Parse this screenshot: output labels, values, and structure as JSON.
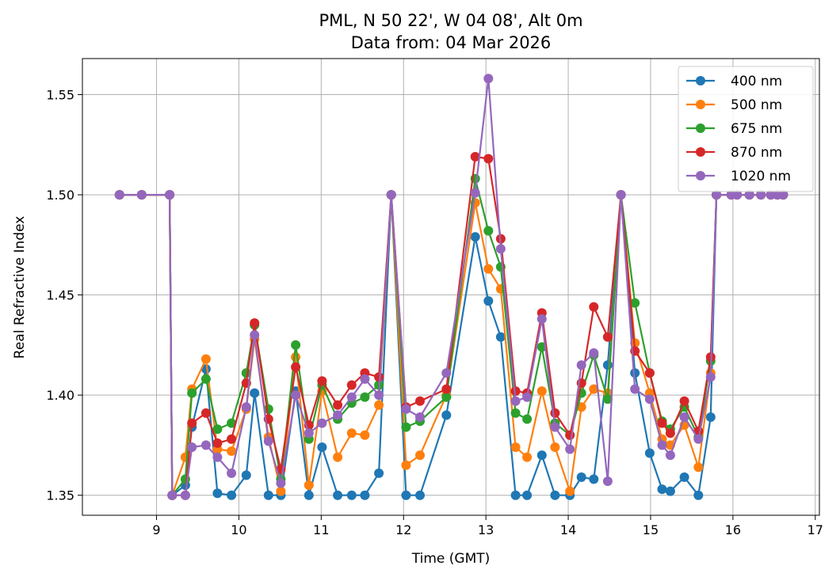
{
  "chart_data": {
    "type": "line",
    "title": "PML, N 50 22', W 04 08', Alt 0m",
    "subtitle": "Data from: 04 Mar 2026",
    "xlabel": "Time (GMT)",
    "ylabel": "Real Refractive Index",
    "xlim": [
      8.1,
      17.05
    ],
    "ylim": [
      1.34,
      1.568
    ],
    "xticks": [
      9,
      10,
      11,
      12,
      13,
      14,
      15,
      16,
      17
    ],
    "xtick_labels": [
      "9",
      "10",
      "11",
      "12",
      "13",
      "14",
      "15",
      "16",
      "17"
    ],
    "yticks": [
      1.35,
      1.4,
      1.45,
      1.5,
      1.55
    ],
    "ytick_labels": [
      "1.35",
      "1.40",
      "1.45",
      "1.50",
      "1.55"
    ],
    "grid": true,
    "legend_position": "top-right",
    "x": [
      8.55,
      8.82,
      9.16,
      9.19,
      9.35,
      9.43,
      9.6,
      9.74,
      9.91,
      10.09,
      10.19,
      10.36,
      10.51,
      10.69,
      10.85,
      11.01,
      11.2,
      11.37,
      11.53,
      11.7,
      11.85,
      12.03,
      12.2,
      12.52,
      12.87,
      13.03,
      13.18,
      13.36,
      13.5,
      13.68,
      13.84,
      14.02,
      14.16,
      14.31,
      14.48,
      14.64,
      14.81,
      14.99,
      15.14,
      15.24,
      15.41,
      15.58,
      15.73,
      15.8,
      15.98,
      16.05,
      16.2,
      16.34,
      16.46,
      16.54,
      16.61
    ],
    "series": [
      {
        "name": "400 nm",
        "color": "#1f77b4",
        "values": [
          1.5,
          1.5,
          1.5,
          1.35,
          1.355,
          1.384,
          1.413,
          1.351,
          1.35,
          1.36,
          1.401,
          1.35,
          1.35,
          1.402,
          1.35,
          1.374,
          1.35,
          1.35,
          1.35,
          1.361,
          1.5,
          1.35,
          1.35,
          1.39,
          1.479,
          1.447,
          1.429,
          1.35,
          1.35,
          1.37,
          1.35,
          1.35,
          1.359,
          1.358,
          1.415,
          1.5,
          1.411,
          1.371,
          1.353,
          1.352,
          1.359,
          1.35,
          1.389,
          1.5,
          1.5,
          1.5,
          1.5,
          1.5,
          1.5,
          1.5,
          1.5
        ]
      },
      {
        "name": "500 nm",
        "color": "#ff7f0e",
        "values": [
          1.5,
          1.5,
          1.5,
          1.35,
          1.369,
          1.403,
          1.418,
          1.373,
          1.372,
          1.393,
          1.428,
          1.379,
          1.352,
          1.419,
          1.355,
          1.402,
          1.369,
          1.381,
          1.38,
          1.395,
          1.5,
          1.365,
          1.37,
          1.4,
          1.496,
          1.463,
          1.453,
          1.374,
          1.369,
          1.402,
          1.374,
          1.352,
          1.394,
          1.403,
          1.401,
          1.5,
          1.426,
          1.401,
          1.378,
          1.375,
          1.385,
          1.364,
          1.411,
          1.5,
          1.5,
          1.5,
          1.5,
          1.5,
          1.5,
          1.5,
          1.5
        ]
      },
      {
        "name": "675 nm",
        "color": "#2ca02c",
        "values": [
          1.5,
          1.5,
          1.5,
          1.35,
          1.358,
          1.401,
          1.408,
          1.383,
          1.386,
          1.411,
          1.435,
          1.393,
          1.358,
          1.425,
          1.378,
          1.405,
          1.388,
          1.396,
          1.399,
          1.405,
          1.5,
          1.384,
          1.387,
          1.399,
          1.508,
          1.482,
          1.464,
          1.391,
          1.388,
          1.424,
          1.386,
          1.38,
          1.401,
          1.42,
          1.398,
          1.5,
          1.446,
          1.411,
          1.387,
          1.383,
          1.394,
          1.379,
          1.417,
          1.5,
          1.5,
          1.5,
          1.5,
          1.5,
          1.5,
          1.5,
          1.5
        ]
      },
      {
        "name": "870 nm",
        "color": "#d62728",
        "values": [
          1.5,
          1.5,
          1.5,
          1.35,
          1.35,
          1.386,
          1.391,
          1.376,
          1.378,
          1.406,
          1.436,
          1.388,
          1.363,
          1.414,
          1.385,
          1.407,
          1.395,
          1.405,
          1.411,
          1.409,
          1.5,
          1.394,
          1.397,
          1.403,
          1.519,
          1.518,
          1.478,
          1.402,
          1.401,
          1.441,
          1.391,
          1.38,
          1.406,
          1.444,
          1.429,
          1.5,
          1.422,
          1.411,
          1.386,
          1.381,
          1.397,
          1.382,
          1.419,
          1.5,
          1.5,
          1.5,
          1.5,
          1.5,
          1.5,
          1.5,
          1.5
        ]
      },
      {
        "name": "1020 nm",
        "color": "#9467bd",
        "values": [
          1.5,
          1.5,
          1.5,
          1.35,
          1.35,
          1.374,
          1.375,
          1.369,
          1.361,
          1.394,
          1.43,
          1.377,
          1.356,
          1.4,
          1.381,
          1.386,
          1.39,
          1.399,
          1.408,
          1.4,
          1.5,
          1.393,
          1.389,
          1.411,
          1.501,
          1.558,
          1.473,
          1.397,
          1.399,
          1.438,
          1.384,
          1.373,
          1.415,
          1.421,
          1.357,
          1.5,
          1.403,
          1.398,
          1.375,
          1.37,
          1.389,
          1.378,
          1.409,
          1.5,
          1.5,
          1.5,
          1.5,
          1.5,
          1.5,
          1.5,
          1.5
        ]
      }
    ]
  }
}
